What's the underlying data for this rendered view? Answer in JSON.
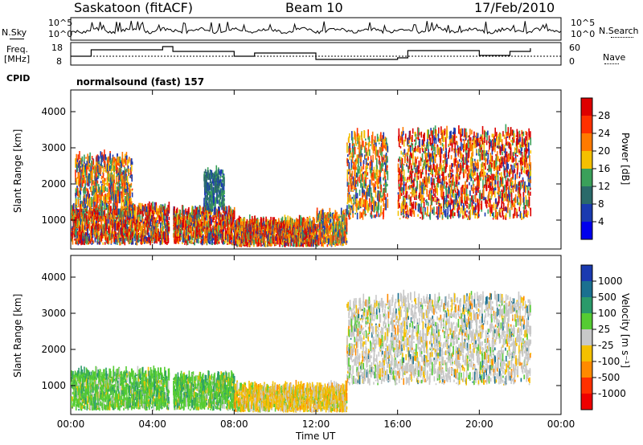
{
  "header": {
    "station": "Saskatoon (fitACF)",
    "beam": "Beam 10",
    "date": "17/Feb/2010"
  },
  "status_panel": {
    "nsky_label": "N.Sky",
    "nsearch_label": "N.Search",
    "freq_label_1": "Freq.",
    "freq_label_2": "[MHz]",
    "nave_label": "Nave",
    "cpid_label": "CPID",
    "cpid_value": "normalsound (fast) 157",
    "noise_ticks": [
      "10^5",
      "10^0"
    ],
    "freq_ticks": [
      "18",
      "8"
    ],
    "nave_ticks": [
      "60",
      "0"
    ]
  },
  "chart_data": [
    {
      "type": "heatmap",
      "title": "",
      "xlabel": "",
      "ylabel": "Slant Range [km]",
      "xlim": [
        0,
        24
      ],
      "ylim": [
        200,
        4600
      ],
      "x_ticks": [
        "00:00",
        "04:00",
        "08:00",
        "12:00",
        "16:00",
        "20:00",
        "00:00"
      ],
      "y_ticks": [
        "1000",
        "2000",
        "3000",
        "4000"
      ],
      "colorbar": {
        "label": "Power [dB]",
        "ticks": [
          "28",
          "24",
          "20",
          "16",
          "12",
          "8",
          "4"
        ],
        "colors": [
          "#dd0000",
          "#ff3000",
          "#ff7a00",
          "#f4c000",
          "#3aa05a",
          "#2a6a6a",
          "#1a3ab0",
          "#0000ee"
        ]
      },
      "regions": [
        {
          "t0": 0.0,
          "t1": 4.8,
          "r0": 300,
          "r1": 1300,
          "level": "high"
        },
        {
          "t0": 0.2,
          "t1": 3.0,
          "r0": 1300,
          "r1": 2700,
          "level": "mid"
        },
        {
          "t0": 5.0,
          "t1": 8.0,
          "r0": 300,
          "r1": 1200,
          "level": "high"
        },
        {
          "t0": 6.5,
          "t1": 7.5,
          "r0": 1200,
          "r1": 2300,
          "level": "low"
        },
        {
          "t0": 8.0,
          "t1": 12.0,
          "r0": 250,
          "r1": 900,
          "level": "high"
        },
        {
          "t0": 12.0,
          "t1": 13.5,
          "r0": 250,
          "r1": 1100,
          "level": "mid"
        },
        {
          "t0": 13.5,
          "t1": 15.5,
          "r0": 1000,
          "r1": 3300,
          "level": "mid"
        },
        {
          "t0": 16.0,
          "t1": 22.5,
          "r0": 1000,
          "r1": 3400,
          "level": "high"
        }
      ]
    },
    {
      "type": "heatmap",
      "title": "",
      "xlabel": "Time UT",
      "ylabel": "Slant Range [km]",
      "xlim": [
        0,
        24
      ],
      "ylim": [
        200,
        4600
      ],
      "x_ticks": [
        "00:00",
        "04:00",
        "08:00",
        "12:00",
        "16:00",
        "20:00",
        "00:00"
      ],
      "y_ticks": [
        "1000",
        "2000",
        "3000",
        "4000"
      ],
      "colorbar": {
        "label": "Velocity [m s⁻¹]",
        "ticks": [
          "1000",
          "500",
          "100",
          "25",
          "-25",
          "-100",
          "-500",
          "-1000"
        ],
        "colors": [
          "#1a3ab0",
          "#1a7090",
          "#2a9a6a",
          "#55cc33",
          "#c8c8c8",
          "#f4c000",
          "#ff8a00",
          "#ff3000",
          "#ee0000"
        ]
      },
      "regions": [
        {
          "t0": 0.0,
          "t1": 4.8,
          "r0": 300,
          "r1": 1300,
          "level": "green"
        },
        {
          "t0": 5.0,
          "t1": 8.0,
          "r0": 300,
          "r1": 1200,
          "level": "green"
        },
        {
          "t0": 8.0,
          "t1": 13.5,
          "r0": 250,
          "r1": 900,
          "level": "orange"
        },
        {
          "t0": 13.5,
          "t1": 16.0,
          "r0": 1000,
          "r1": 3300,
          "level": "grey"
        },
        {
          "t0": 16.0,
          "t1": 22.5,
          "r0": 1000,
          "r1": 3400,
          "level": "grey"
        }
      ]
    }
  ]
}
